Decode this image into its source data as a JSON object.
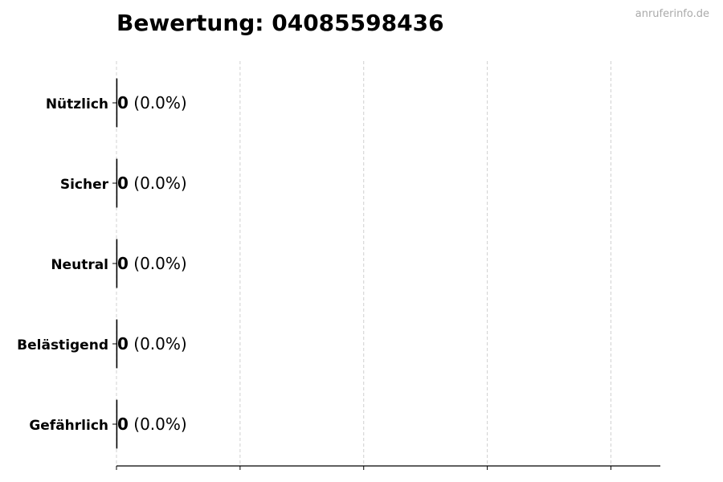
{
  "chart_data": {
    "type": "bar",
    "orientation": "horizontal",
    "title": "Bewertung: 04085598436",
    "watermark": "anruferinfo.de",
    "categories": [
      "Nützlich",
      "Sicher",
      "Neutral",
      "Belästigend",
      "Gefährlich"
    ],
    "values": [
      0,
      0,
      0,
      0,
      0
    ],
    "data_labels": [
      {
        "count": "0",
        "percent": "(0.0%)"
      },
      {
        "count": "0",
        "percent": "(0.0%)"
      },
      {
        "count": "0",
        "percent": "(0.0%)"
      },
      {
        "count": "0",
        "percent": "(0.0%)"
      },
      {
        "count": "0",
        "percent": "(0.0%)"
      }
    ],
    "xlabel": "",
    "ylabel": "",
    "xlim": [
      0,
      4.4
    ],
    "xticks": [
      0,
      1,
      2,
      3,
      4
    ],
    "xtick_labels_shown": false,
    "grid": "x dashed",
    "legend": "none",
    "colors": {
      "grid": "#d0d0d0",
      "axis": "#000000",
      "bar_edge": "#000000"
    }
  }
}
